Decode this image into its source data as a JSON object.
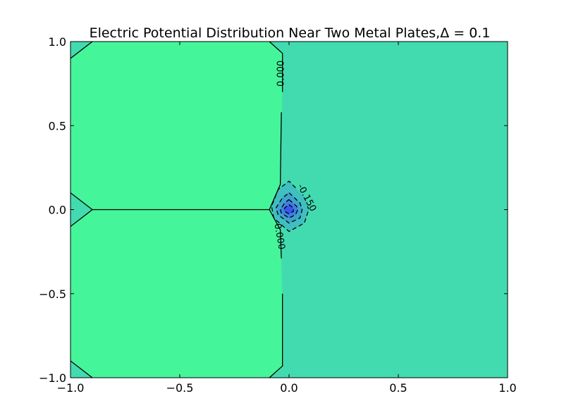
{
  "chart_data": {
    "type": "contour",
    "title": "Electric Potential Distribution Near Two Metal Plates,Δ = 0.1",
    "xlabel": "",
    "ylabel": "",
    "xlim": [
      -1.0,
      1.0
    ],
    "ylim": [
      -1.0,
      1.0
    ],
    "x_ticks": [
      -1.0,
      -0.5,
      0.0,
      0.5,
      1.0
    ],
    "y_ticks": [
      -1.0,
      -0.5,
      0.0,
      0.5,
      1.0
    ],
    "x_tick_labels": [
      "−1.0",
      "−0.5",
      "0.0",
      "0.5",
      "1.0"
    ],
    "y_tick_labels": [
      "−1.0",
      "−0.5",
      "0.0",
      "0.5",
      "1.0"
    ],
    "grid": false,
    "contour_labels": [
      {
        "text": "0.000",
        "x": -0.035,
        "y": 0.81,
        "angle": -90
      },
      {
        "text": "-0.150",
        "x": 0.08,
        "y": 0.07,
        "angle": 62
      },
      {
        "text": "0.000",
        "x": -0.045,
        "y": -0.16,
        "angle": 80
      }
    ],
    "filled_regions": [
      {
        "level": "0 to 0.15",
        "color": "#45f59a",
        "polygon": [
          [
            -1,
            0.9
          ],
          [
            -0.9,
            1
          ],
          [
            -0.09,
            1
          ],
          [
            -0.03,
            0.93
          ],
          [
            -0.03,
            0.7
          ],
          [
            -0.04,
            0.15
          ],
          [
            -0.09,
            0
          ],
          [
            -0.04,
            -0.12
          ],
          [
            -0.03,
            -0.5
          ],
          [
            -0.03,
            -0.93
          ],
          [
            -0.09,
            -1
          ],
          [
            -0.9,
            -1
          ],
          [
            -1,
            -0.9
          ],
          [
            -1,
            -0.1
          ],
          [
            -0.9,
            0
          ],
          [
            -1,
            0.1
          ]
        ]
      },
      {
        "level": "-0.15 to 0",
        "color": "#42dbb0",
        "polygon": [
          [
            -0.03,
            0.93
          ],
          [
            -0.09,
            1
          ],
          [
            1,
            1
          ],
          [
            1,
            -1
          ],
          [
            -0.09,
            -1
          ],
          [
            -0.03,
            -0.93
          ],
          [
            -0.03,
            -0.5
          ],
          [
            -0.04,
            -0.12
          ],
          [
            -0.09,
            0
          ],
          [
            -0.04,
            0.15
          ],
          [
            -0.03,
            0.7
          ]
        ]
      },
      {
        "level": "-0.15 to 0 (corner)",
        "color": "#42dbb0",
        "polygon": [
          [
            -1,
            1
          ],
          [
            -0.9,
            1
          ],
          [
            -1,
            0.9
          ]
        ]
      },
      {
        "level": "-0.15 to 0 (corner)",
        "color": "#42dbb0",
        "polygon": [
          [
            -1,
            -1
          ],
          [
            -0.9,
            -1
          ],
          [
            -1,
            -0.9
          ]
        ]
      },
      {
        "level": "-0.15 to 0 (notch)",
        "color": "#42dbb0",
        "polygon": [
          [
            -1,
            0.1
          ],
          [
            -0.9,
            0
          ],
          [
            -1,
            -0.1
          ]
        ]
      },
      {
        "level": "-0.30 to -0.15",
        "color": "#3fbfc0",
        "polygon": [
          [
            0,
            0.17
          ],
          [
            0.07,
            0.07
          ],
          [
            0.09,
            0
          ],
          [
            0.07,
            -0.08
          ],
          [
            0,
            -0.13
          ],
          [
            -0.07,
            -0.05
          ],
          [
            -0.08,
            0.02
          ],
          [
            -0.05,
            0.12
          ]
        ]
      },
      {
        "level": "-0.45 to -0.30",
        "color": "#3ea2cf",
        "polygon": [
          [
            0,
            0.1
          ],
          [
            0.05,
            0.04
          ],
          [
            0.06,
            0
          ],
          [
            0.05,
            -0.05
          ],
          [
            0,
            -0.08
          ],
          [
            -0.05,
            -0.03
          ],
          [
            -0.06,
            0.01
          ],
          [
            -0.03,
            0.07
          ]
        ]
      },
      {
        "level": "-0.60 to -0.45",
        "color": "#3d80e0",
        "polygon": [
          [
            0,
            0.06
          ],
          [
            0.035,
            0.02
          ],
          [
            0.04,
            0
          ],
          [
            0.03,
            -0.03
          ],
          [
            0,
            -0.05
          ],
          [
            -0.035,
            -0.02
          ],
          [
            -0.04,
            0
          ],
          [
            -0.02,
            0.04
          ]
        ]
      },
      {
        "level": "< -0.60",
        "color": "#3b55f0",
        "polygon": [
          [
            0,
            0.03
          ],
          [
            0.02,
            0.01
          ],
          [
            0.02,
            -0.01
          ],
          [
            0,
            -0.025
          ],
          [
            -0.02,
            -0.01
          ],
          [
            -0.02,
            0.01
          ]
        ]
      }
    ],
    "contour_lines": [
      {
        "level": 0.0,
        "style": "solid",
        "points": [
          [
            -0.03,
            0.7
          ],
          [
            -0.03,
            0.93
          ],
          [
            -0.09,
            1
          ]
        ]
      },
      {
        "level": 0.0,
        "style": "solid",
        "points": [
          [
            -0.035,
            0.58
          ],
          [
            -0.04,
            0.15
          ],
          [
            -0.09,
            0
          ],
          [
            -0.04,
            -0.12
          ],
          [
            -0.035,
            -0.29
          ]
        ]
      },
      {
        "level": 0.0,
        "style": "solid",
        "points": [
          [
            -0.03,
            -0.5
          ],
          [
            -0.03,
            -0.93
          ],
          [
            -0.09,
            -1
          ]
        ]
      },
      {
        "level": 0.0,
        "style": "solid",
        "points": [
          [
            -0.09,
            0
          ],
          [
            -0.9,
            0
          ]
        ]
      },
      {
        "level": 0.0,
        "style": "solid",
        "points": [
          [
            -1,
            0.9
          ],
          [
            -0.9,
            1
          ]
        ]
      },
      {
        "level": 0.0,
        "style": "solid",
        "points": [
          [
            -1,
            -0.9
          ],
          [
            -0.9,
            -1
          ]
        ]
      },
      {
        "level": 0.0,
        "style": "solid",
        "points": [
          [
            -1,
            0.1
          ],
          [
            -0.9,
            0
          ],
          [
            -1,
            -0.1
          ]
        ]
      },
      {
        "level": -0.15,
        "style": "dashed",
        "points": [
          [
            0.03,
            0.13
          ],
          [
            0,
            0.17
          ],
          [
            -0.05,
            0.12
          ],
          [
            -0.08,
            0.02
          ],
          [
            -0.07,
            -0.05
          ],
          [
            0,
            -0.13
          ],
          [
            0.07,
            -0.08
          ],
          [
            0.09,
            0
          ],
          [
            0.085,
            0.02
          ]
        ]
      },
      {
        "level": -0.3,
        "style": "dashed",
        "points": [
          [
            0,
            0.1
          ],
          [
            0.05,
            0.04
          ],
          [
            0.06,
            0
          ],
          [
            0.05,
            -0.05
          ],
          [
            0,
            -0.08
          ],
          [
            -0.05,
            -0.03
          ],
          [
            -0.06,
            0.01
          ],
          [
            -0.03,
            0.07
          ],
          [
            0,
            0.1
          ]
        ]
      },
      {
        "level": -0.45,
        "style": "dashed",
        "points": [
          [
            0,
            0.06
          ],
          [
            0.035,
            0.02
          ],
          [
            0.04,
            0
          ],
          [
            0.03,
            -0.03
          ],
          [
            0,
            -0.05
          ],
          [
            -0.035,
            -0.02
          ],
          [
            -0.04,
            0
          ],
          [
            -0.02,
            0.04
          ],
          [
            0,
            0.06
          ]
        ]
      },
      {
        "level": -0.6,
        "style": "dashed",
        "points": [
          [
            0,
            0.03
          ],
          [
            0.02,
            0.01
          ],
          [
            0.02,
            -0.01
          ],
          [
            0,
            -0.025
          ],
          [
            -0.02,
            -0.01
          ],
          [
            -0.02,
            0.01
          ],
          [
            0,
            0.03
          ]
        ]
      }
    ]
  }
}
